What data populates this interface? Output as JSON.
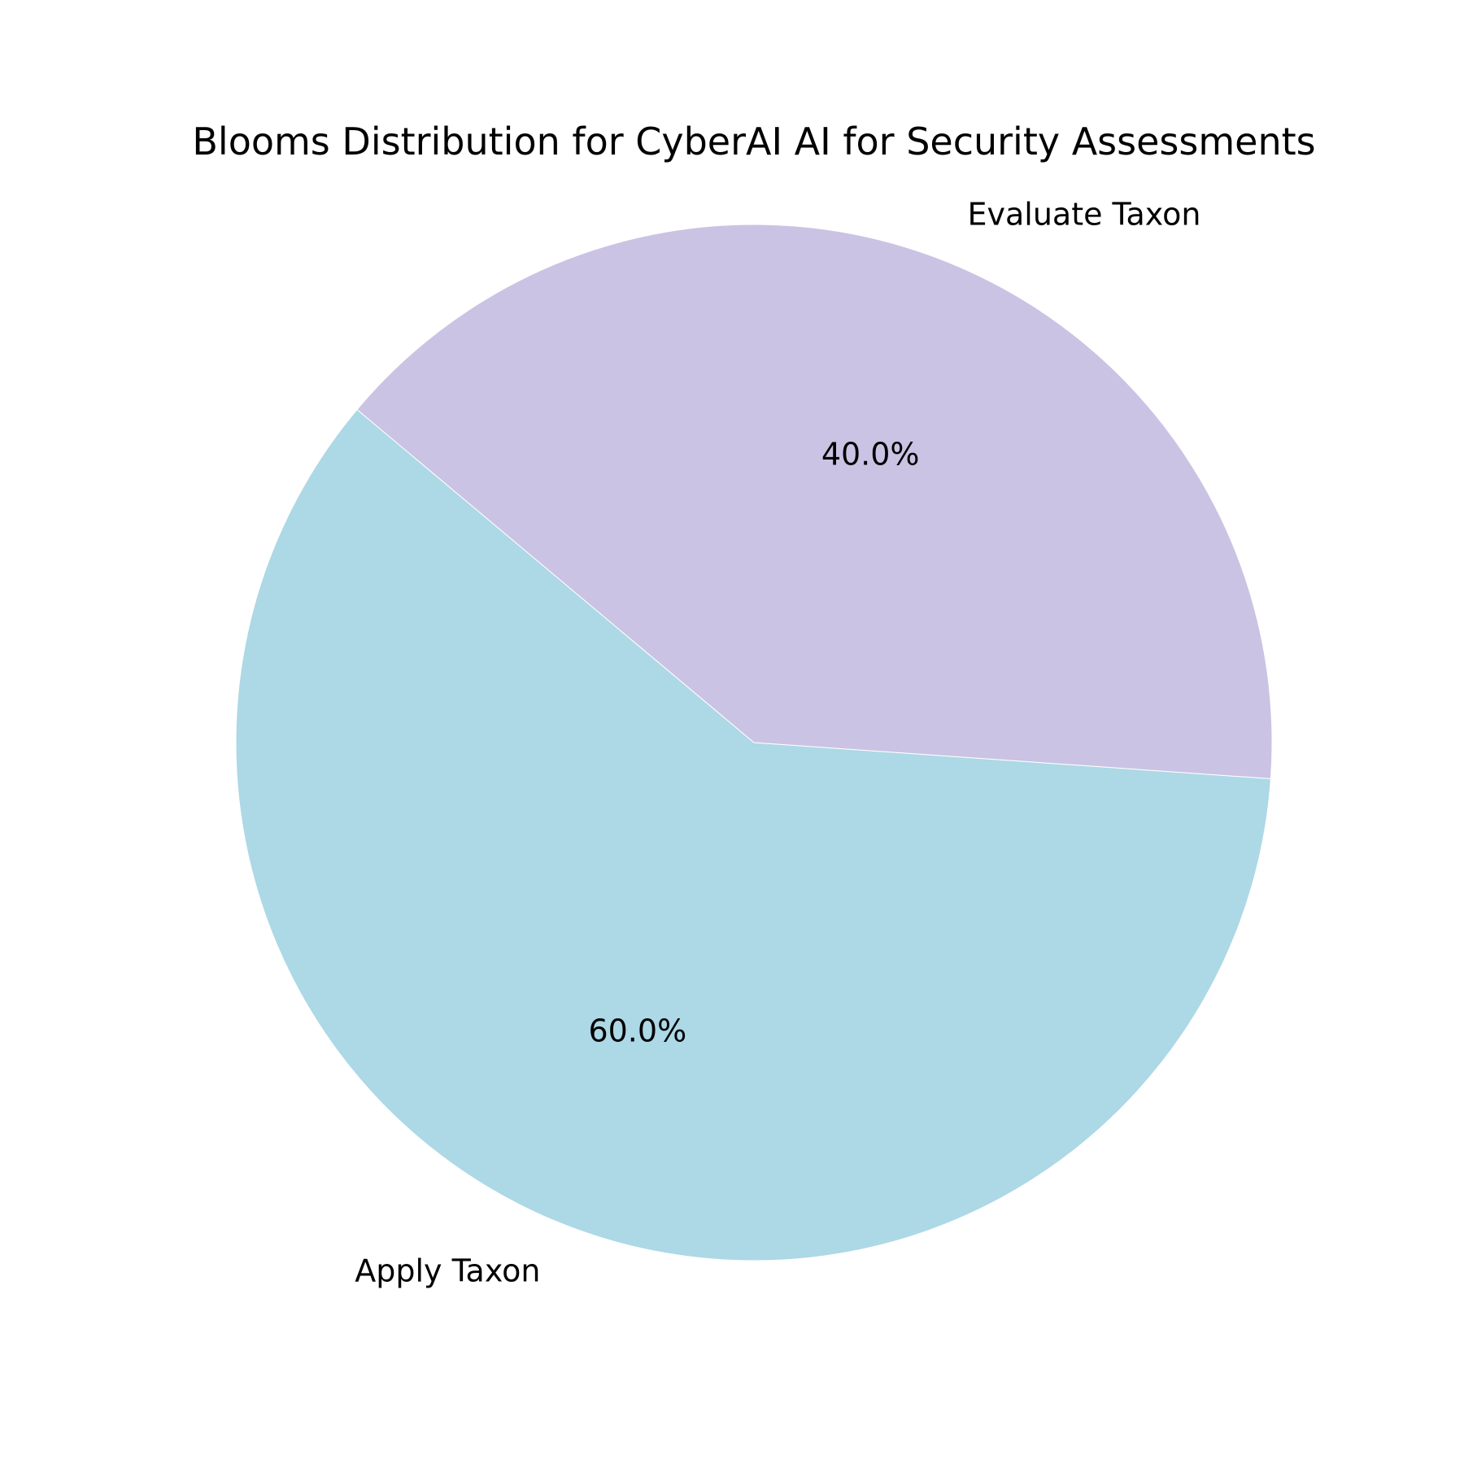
{
  "chart_data": {
    "type": "pie",
    "title": "Blooms Distribution for CyberAI AI for Security Assessments",
    "slices": [
      {
        "label": "Apply Taxon",
        "value": 60.0,
        "pct_label": "60.0%",
        "color": "#add8e6"
      },
      {
        "label": "Evaluate Taxon",
        "value": 40.0,
        "pct_label": "40.0%",
        "color": "#cbc3e3"
      }
    ],
    "start_angle_deg": 140,
    "direction": "counterclockwise",
    "legend": "none"
  }
}
